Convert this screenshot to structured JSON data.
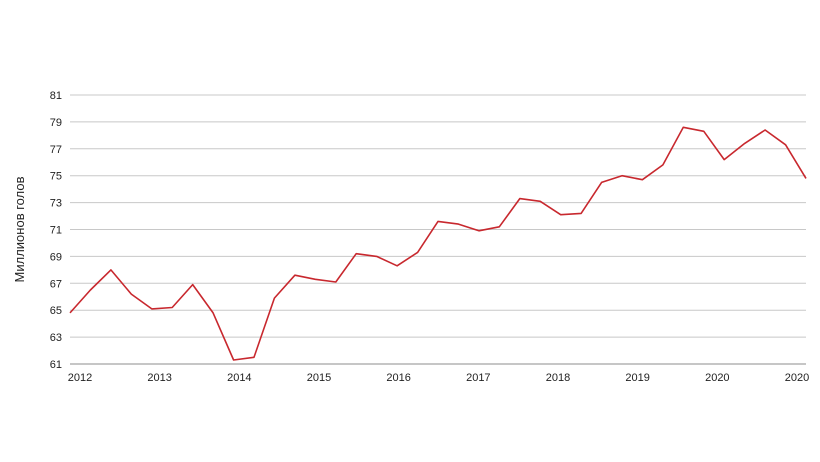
{
  "chart_data": {
    "type": "line",
    "title": "",
    "xlabel": "",
    "ylabel": "Миллионов голов",
    "x_tick_labels": [
      "2012",
      "2013",
      "2014",
      "2015",
      "2016",
      "2017",
      "2018",
      "2019",
      "2020",
      "2020"
    ],
    "y_tick_labels": [
      "61",
      "63",
      "65",
      "67",
      "69",
      "71",
      "73",
      "75",
      "77",
      "79",
      "81"
    ],
    "ylim": [
      61,
      81
    ],
    "grid": true,
    "legend": false,
    "line_color": "#c8282e",
    "x": [
      2012.0,
      2012.25,
      2012.5,
      2012.75,
      2013.0,
      2013.25,
      2013.5,
      2013.75,
      2014.0,
      2014.25,
      2014.5,
      2014.75,
      2015.0,
      2015.25,
      2015.5,
      2015.75,
      2016.0,
      2016.25,
      2016.5,
      2016.75,
      2017.0,
      2017.25,
      2017.5,
      2017.75,
      2018.0,
      2018.25,
      2018.5,
      2018.75,
      2019.0,
      2019.25,
      2019.5,
      2019.75,
      2020.0,
      2020.25,
      2020.5,
      2020.75,
      2021.0
    ],
    "series": [
      {
        "values": [
          64.8,
          66.5,
          68.0,
          66.2,
          65.1,
          65.2,
          66.9,
          64.8,
          61.3,
          61.5,
          65.9,
          67.6,
          67.3,
          67.1,
          69.2,
          69.0,
          68.3,
          69.3,
          71.6,
          71.4,
          70.9,
          71.2,
          73.3,
          73.1,
          72.1,
          72.2,
          74.5,
          75.0,
          74.7,
          75.8,
          78.6,
          78.3,
          76.2,
          77.4,
          78.4,
          77.3,
          74.8
        ]
      }
    ]
  }
}
